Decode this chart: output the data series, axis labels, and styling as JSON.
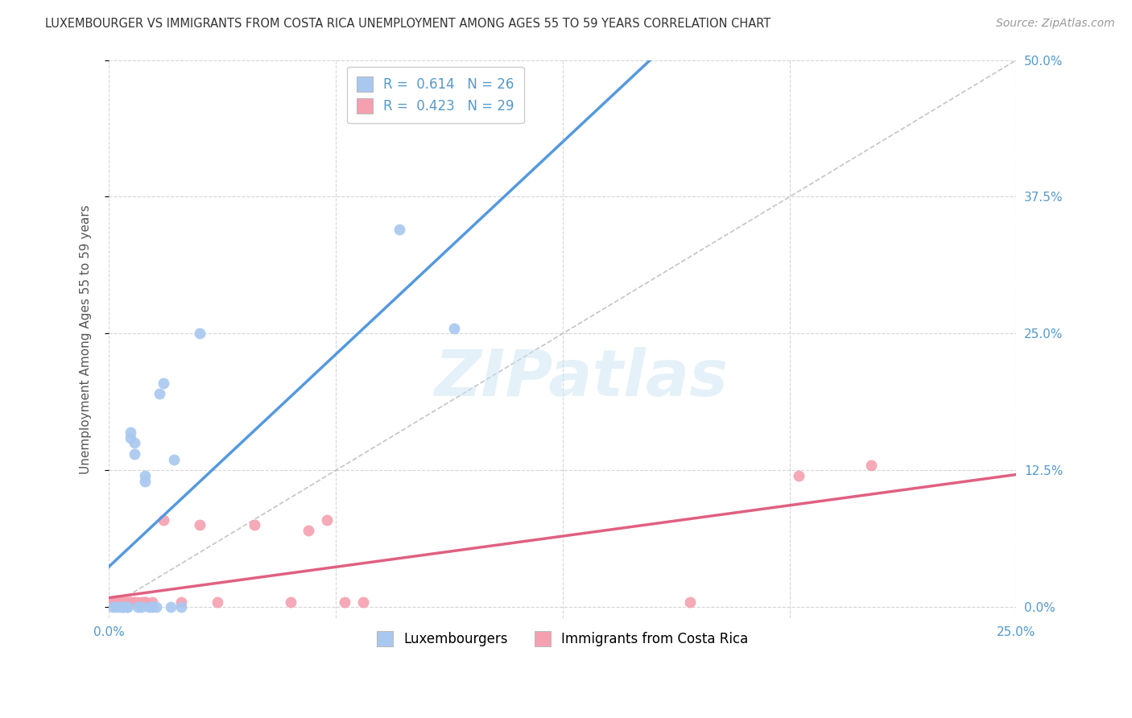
{
  "title": "LUXEMBOURGER VS IMMIGRANTS FROM COSTA RICA UNEMPLOYMENT AMONG AGES 55 TO 59 YEARS CORRELATION CHART",
  "source": "Source: ZipAtlas.com",
  "ylabel": "Unemployment Among Ages 55 to 59 years",
  "legend_label1": "Luxembourgers",
  "legend_label2": "Immigrants from Costa Rica",
  "R1": 0.614,
  "N1": 26,
  "R2": 0.423,
  "N2": 29,
  "color_blue": "#a8c8f0",
  "color_pink": "#f5a0b0",
  "color_blue_line": "#5599dd",
  "color_pink_line": "#e06080",
  "color_diag": "#bbbbbb",
  "xlim": [
    0.0,
    0.25
  ],
  "ylim": [
    -0.01,
    0.5
  ],
  "blue_points_x": [
    0.001,
    0.002,
    0.003,
    0.004,
    0.004,
    0.005,
    0.005,
    0.006,
    0.006,
    0.007,
    0.007,
    0.008,
    0.009,
    0.01,
    0.01,
    0.011,
    0.012,
    0.013,
    0.014,
    0.015,
    0.017,
    0.018,
    0.02,
    0.025,
    0.08,
    0.095
  ],
  "blue_points_y": [
    0.0,
    0.0,
    0.0,
    0.0,
    0.0,
    0.0,
    0.0,
    0.155,
    0.16,
    0.14,
    0.15,
    0.0,
    0.0,
    0.115,
    0.12,
    0.0,
    0.0,
    0.0,
    0.195,
    0.205,
    0.0,
    0.135,
    0.0,
    0.25,
    0.345,
    0.255
  ],
  "pink_points_x": [
    0.001,
    0.002,
    0.002,
    0.003,
    0.004,
    0.005,
    0.005,
    0.006,
    0.006,
    0.007,
    0.007,
    0.008,
    0.009,
    0.01,
    0.01,
    0.012,
    0.015,
    0.02,
    0.025,
    0.03,
    0.04,
    0.05,
    0.055,
    0.06,
    0.065,
    0.07,
    0.16,
    0.19,
    0.21
  ],
  "pink_points_y": [
    0.005,
    0.005,
    0.005,
    0.005,
    0.005,
    0.005,
    0.005,
    0.005,
    0.005,
    0.005,
    0.005,
    0.005,
    0.005,
    0.005,
    0.005,
    0.005,
    0.08,
    0.005,
    0.075,
    0.005,
    0.075,
    0.005,
    0.07,
    0.08,
    0.005,
    0.005,
    0.005,
    0.12,
    0.13
  ],
  "watermark_text": "ZIPatlas",
  "background_color": "#ffffff",
  "tick_label_color": "#5599cc",
  "grid_color": "#cccccc",
  "title_color": "#333333",
  "source_color": "#999999"
}
